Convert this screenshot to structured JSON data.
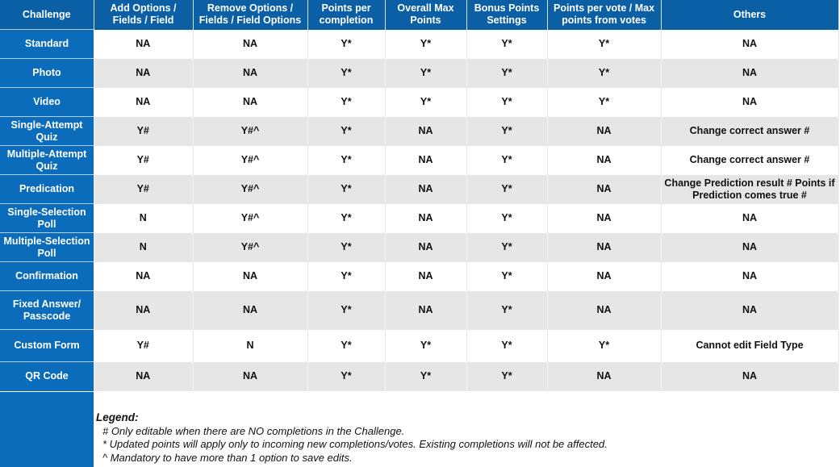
{
  "header": {
    "challenge": "Challenge",
    "add_options": "Add Options / Fields / Field",
    "remove_options": "Remove Options / Fields / Field Options",
    "points_per_completion": "Points per completion",
    "overall_max_points": "Overall Max Points",
    "bonus_points": "Bonus Points Settings",
    "points_per_vote": "Points per vote / Max points from votes",
    "others": "Others"
  },
  "rows": [
    {
      "challenge": "Standard",
      "add": "NA",
      "remove": "NA",
      "ppc": "Y*",
      "max": "Y*",
      "bonus": "Y*",
      "votes": "Y*",
      "others": "NA"
    },
    {
      "challenge": "Photo",
      "add": "NA",
      "remove": "NA",
      "ppc": "Y*",
      "max": "Y*",
      "bonus": "Y*",
      "votes": "Y*",
      "others": "NA"
    },
    {
      "challenge": "Video",
      "add": "NA",
      "remove": "NA",
      "ppc": "Y*",
      "max": "Y*",
      "bonus": "Y*",
      "votes": "Y*",
      "others": "NA"
    },
    {
      "challenge": "Single-Attempt Quiz",
      "add": "Y#",
      "remove": "Y#^",
      "ppc": "Y*",
      "max": "NA",
      "bonus": "Y*",
      "votes": "NA",
      "others": "Change correct answer #"
    },
    {
      "challenge": "Multiple-Attempt Quiz",
      "add": "Y#",
      "remove": "Y#^",
      "ppc": "Y*",
      "max": "NA",
      "bonus": "Y*",
      "votes": "NA",
      "others": "Change correct answer #"
    },
    {
      "challenge": "Predication",
      "add": "Y#",
      "remove": "Y#^",
      "ppc": "Y*",
      "max": "NA",
      "bonus": "Y*",
      "votes": "NA",
      "others": "Change Prediction result # Points if Prediction comes true #"
    },
    {
      "challenge": "Single-Selection Poll",
      "add": "N",
      "remove": "Y#^",
      "ppc": "Y*",
      "max": "NA",
      "bonus": "Y*",
      "votes": "NA",
      "others": "NA"
    },
    {
      "challenge": "Multiple-Selection Poll",
      "add": "N",
      "remove": "Y#^",
      "ppc": "Y*",
      "max": "NA",
      "bonus": "Y*",
      "votes": "NA",
      "others": "NA"
    },
    {
      "challenge": "Confirmation",
      "add": "NA",
      "remove": "NA",
      "ppc": "Y*",
      "max": "NA",
      "bonus": "Y*",
      "votes": "NA",
      "others": "NA"
    },
    {
      "challenge": "Fixed Answer/ Passcode",
      "add": "NA",
      "remove": "NA",
      "ppc": "Y*",
      "max": "NA",
      "bonus": "Y*",
      "votes": "NA",
      "others": "NA"
    },
    {
      "challenge": "Custom Form",
      "add": "Y#",
      "remove": "N",
      "ppc": "Y*",
      "max": "Y*",
      "bonus": "Y*",
      "votes": "Y*",
      "others": "Cannot edit Field Type"
    },
    {
      "challenge": "QR Code",
      "add": "NA",
      "remove": "NA",
      "ppc": "Y*",
      "max": "Y*",
      "bonus": "Y*",
      "votes": "NA",
      "others": "NA"
    }
  ],
  "legend": {
    "title": "Legend:",
    "hash": "# Only editable when there are NO completions in the Challenge.",
    "star": "* Updated points will apply only to incoming new completions/votes. Existing completions will not be affected.",
    "caret": "^ Mandatory to have more than 1 option to save edits."
  }
}
